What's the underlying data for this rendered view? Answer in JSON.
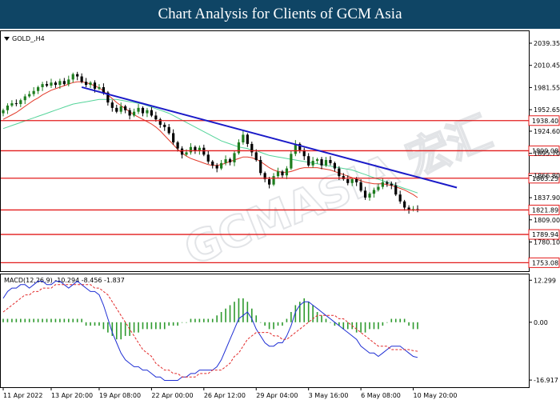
{
  "banner": {
    "title": "Chart Analysis for Clients of GCM Asia"
  },
  "symbol_label": "GOLD_,H4",
  "watermark": "GCMASIA 宏汇",
  "colors": {
    "bull": "#1e7d1e",
    "bear": "#000000",
    "ma_fast": "#e23a2a",
    "ma_slow": "#55d49a",
    "trendline": "#1a1ac8",
    "level": "#e21b1b",
    "macd": "#1f2fd4",
    "signal": "#e22a2a",
    "hist": "#2e9a2e",
    "banner": "#0f4565"
  },
  "chart_data": [
    {
      "type": "candlestick",
      "symbol": "GOLD_,H4",
      "ylim": [
        1742,
        2055
      ],
      "y_ticks": [
        "2039.35",
        "2010.45",
        "1981.55",
        "1952.65",
        "1924.60",
        "1895.70",
        "1866.80",
        "1837.90",
        "1809.00",
        "1780.10"
      ],
      "x_ticks": [
        "11 Apr 2022",
        "13 Apr 20:00",
        "19 Apr 08:00",
        "22 Apr 00:00",
        "26 Apr 12:00",
        "29 Apr 04:00",
        "3 May 16:00",
        "6 May 08:00",
        "10 May 20:00"
      ],
      "closes": [
        1952,
        1958,
        1961,
        1960,
        1965,
        1970,
        1973,
        1977,
        1982,
        1986,
        1984,
        1988,
        1985,
        1990,
        1986,
        1992,
        1999,
        1996,
        1989,
        1985,
        1988,
        1980,
        1982,
        1975,
        1962,
        1955,
        1950,
        1957,
        1952,
        1945,
        1950,
        1955,
        1948,
        1952,
        1945,
        1940,
        1933,
        1930,
        1922,
        1910,
        1902,
        1894,
        1897,
        1904,
        1899,
        1903,
        1894,
        1885,
        1880,
        1876,
        1883,
        1888,
        1884,
        1896,
        1910,
        1920,
        1908,
        1897,
        1887,
        1870,
        1862,
        1855,
        1866,
        1872,
        1867,
        1876,
        1895,
        1908,
        1900,
        1892,
        1880,
        1886,
        1888,
        1880,
        1887,
        1883,
        1876,
        1866,
        1862,
        1857,
        1862,
        1858,
        1847,
        1838,
        1843,
        1848,
        1852,
        1858,
        1856,
        1854,
        1842,
        1833,
        1825,
        1822,
        1823,
        1822
      ],
      "ma_fast": [
        1940,
        1943,
        1946,
        1949,
        1953,
        1957,
        1961,
        1965,
        1968,
        1972,
        1975,
        1978,
        1980,
        1982,
        1984,
        1986,
        1988,
        1989,
        1989,
        1988,
        1986,
        1984,
        1981,
        1977,
        1972,
        1967,
        1962,
        1958,
        1954,
        1950,
        1946,
        1943,
        1940,
        1937,
        1934,
        1930,
        1925,
        1919,
        1913,
        1907,
        1901,
        1896,
        1892,
        1889,
        1887,
        1885,
        1883,
        1881,
        1880,
        1880,
        1881,
        1883,
        1885,
        1887,
        1889,
        1891,
        1891,
        1890,
        1888,
        1885,
        1881,
        1877,
        1874,
        1872,
        1871,
        1871,
        1872,
        1874,
        1876,
        1877,
        1877,
        1877,
        1877,
        1876,
        1875,
        1874,
        1872,
        1870,
        1868,
        1866,
        1864,
        1862,
        1860,
        1858,
        1857,
        1856,
        1856,
        1856,
        1855,
        1854,
        1852,
        1850,
        1848,
        1845,
        1842,
        1838
      ],
      "ma_slow": [
        1928,
        1930,
        1932,
        1934,
        1936,
        1938,
        1940,
        1942,
        1944,
        1946,
        1948,
        1950,
        1952,
        1954,
        1956,
        1958,
        1960,
        1961,
        1962,
        1963,
        1964,
        1965,
        1966,
        1966,
        1966,
        1966,
        1966,
        1965,
        1964,
        1963,
        1962,
        1961,
        1960,
        1958,
        1956,
        1954,
        1952,
        1950,
        1948,
        1945,
        1942,
        1939,
        1936,
        1933,
        1930,
        1927,
        1924,
        1921,
        1918,
        1915,
        1912,
        1910,
        1908,
        1906,
        1904,
        1903,
        1902,
        1900,
        1899,
        1897,
        1895,
        1893,
        1892,
        1891,
        1890,
        1889,
        1888,
        1887,
        1886,
        1885,
        1884,
        1883,
        1882,
        1881,
        1880,
        1879,
        1878,
        1877,
        1876,
        1875,
        1874,
        1872,
        1870,
        1868,
        1866,
        1864,
        1862,
        1860,
        1858,
        1856,
        1854,
        1852,
        1850,
        1848,
        1846,
        1844
      ],
      "trendline": {
        "from": [
          18,
          1982
        ],
        "to": [
          104,
          1851
        ]
      },
      "levels": [
        {
          "value": 1938.4,
          "label": "1938.40"
        },
        {
          "value": 1899.08,
          "label": "1899.08"
        },
        {
          "value": 1863.25,
          "label": "1863.25"
        },
        {
          "value": 1821.89,
          "label": "1821.89"
        },
        {
          "value": 1789.94,
          "label": "1789.94"
        },
        {
          "value": 1753.08,
          "label": "1753.08"
        }
      ]
    },
    {
      "type": "macd",
      "label": "MACD(12,26,9) -10.294 -8.456 -1.837",
      "ylim": [
        -19,
        14
      ],
      "y_ticks": [
        "12.299",
        "0.00",
        "-16.917"
      ],
      "macd": [
        7,
        9,
        10,
        10,
        11,
        11,
        10,
        11,
        12,
        12,
        11,
        11,
        12,
        12,
        11,
        10,
        11,
        12,
        11,
        10,
        9,
        9,
        8,
        5,
        1,
        -3,
        -6,
        -9,
        -11,
        -12,
        -13,
        -13,
        -14,
        -14,
        -15,
        -16,
        -16,
        -17,
        -17,
        -17,
        -17,
        -16,
        -16,
        -15,
        -15,
        -14,
        -14,
        -14,
        -14,
        -13,
        -11,
        -8,
        -5,
        -2,
        1,
        2,
        3,
        1,
        -2,
        -4,
        -6,
        -7,
        -7,
        -6,
        -6,
        -4,
        -1,
        3,
        5,
        6,
        6,
        5,
        4,
        3,
        2,
        1,
        0,
        -1,
        -2,
        -3,
        -4,
        -5,
        -7,
        -8,
        -9,
        -9,
        -10,
        -9,
        -8,
        -7,
        -7,
        -7,
        -8,
        -9,
        -10,
        -10.3
      ],
      "signal": [
        3,
        4,
        5,
        6,
        7,
        8,
        8,
        9,
        9,
        10,
        10,
        10,
        11,
        11,
        11,
        11,
        11,
        11,
        11,
        11,
        11,
        10,
        10,
        9,
        8,
        6,
        4,
        2,
        0,
        -2,
        -4,
        -6,
        -8,
        -9,
        -10,
        -12,
        -13,
        -14,
        -14,
        -15,
        -15,
        -16,
        -16,
        -16,
        -16,
        -15,
        -15,
        -15,
        -14,
        -14,
        -14,
        -13,
        -12,
        -10,
        -9,
        -7,
        -5,
        -4,
        -3,
        -3,
        -3,
        -3,
        -4,
        -4,
        -5,
        -5,
        -4,
        -3,
        -2,
        -1,
        0,
        1,
        2,
        2,
        2,
        2,
        2,
        1,
        1,
        0,
        -1,
        -2,
        -3,
        -4,
        -5,
        -6,
        -7,
        -7,
        -7,
        -8,
        -8,
        -8,
        -8,
        -8,
        -8.3,
        -8.5
      ],
      "histogram": [
        1,
        1,
        1,
        1,
        1,
        1,
        1,
        1,
        1,
        1,
        1,
        1,
        1,
        1,
        1,
        1,
        1,
        1,
        1,
        -1,
        -1,
        -1,
        -1,
        -2,
        -3,
        -4,
        -5,
        -5,
        -4,
        -4,
        -3,
        -3,
        -2,
        -2,
        -2,
        -2,
        -2,
        -2,
        -1,
        -1,
        -1,
        0,
        0,
        1,
        1,
        1,
        1,
        1,
        1,
        2,
        3,
        4,
        5,
        6,
        7,
        7,
        6,
        4,
        2,
        0,
        -1,
        -2,
        -2,
        -1,
        -1,
        1,
        3,
        5,
        6,
        7,
        6,
        5,
        3,
        2,
        1,
        0,
        -1,
        -1,
        -2,
        -2,
        -2,
        -3,
        -3,
        -3,
        -2,
        -2,
        -2,
        -1,
        0,
        1,
        1,
        1,
        1,
        -1,
        -2,
        -2
      ]
    }
  ]
}
